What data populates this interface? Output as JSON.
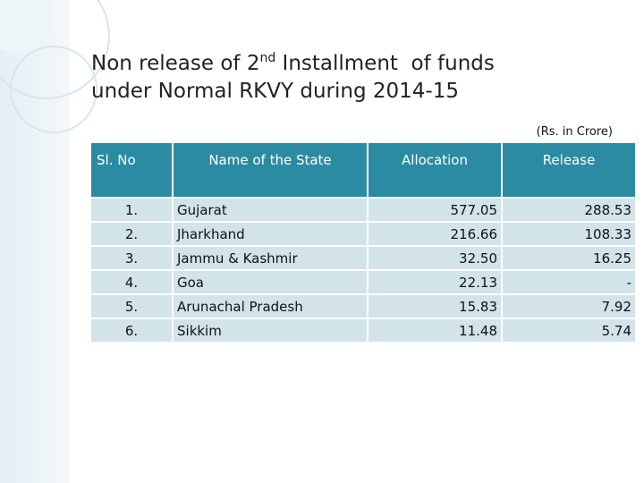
{
  "title": {
    "before": "Non release of 2",
    "sup": "nd",
    "after": " Installment  of funds",
    "line2": "under Normal RKVY during 2014-15"
  },
  "unit_note": "(Rs. in Crore)",
  "table": {
    "headers": [
      "Sl. No",
      "Name of the State",
      "Allocation",
      "Release"
    ],
    "rows": [
      [
        "1.",
        "Gujarat",
        "577.05",
        "288.53"
      ],
      [
        "2.",
        "Jharkhand",
        "216.66",
        "108.33"
      ],
      [
        "3.",
        "Jammu & Kashmir",
        "32.50",
        "16.25"
      ],
      [
        "4.",
        "Goa",
        "22.13",
        "-"
      ],
      [
        "5.",
        "Arunachal Pradesh",
        "15.83",
        "7.92"
      ],
      [
        "6.",
        "Sikkim",
        "11.48",
        "5.74"
      ]
    ]
  }
}
